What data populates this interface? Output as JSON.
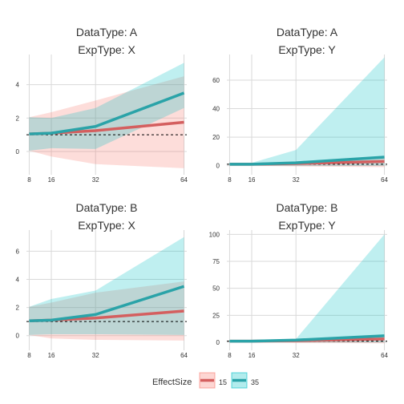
{
  "colors": {
    "series_15": "#d45f5f",
    "series_15_band": "#f8766d",
    "series_35": "#2aa3a8",
    "series_35_band": "#00bfc4",
    "grid": "#d9d9d9",
    "text": "#333333",
    "ref_line": "#000000"
  },
  "legend": {
    "title": "EffectSize",
    "items": [
      {
        "label": "15",
        "key": "series_15"
      },
      {
        "label": "35",
        "key": "series_35"
      }
    ]
  },
  "chart_data": [
    {
      "type": "line",
      "title": [
        "DataType: A",
        "ExpType: X"
      ],
      "x": [
        8,
        16,
        32,
        64
      ],
      "xticks": [
        8,
        16,
        32,
        64
      ],
      "xlim": [
        7,
        65
      ],
      "ylim": [
        -1.1,
        5.8
      ],
      "yticks": [
        0,
        2,
        4
      ],
      "ref_line_y": 1,
      "series": [
        {
          "name": "15",
          "values": [
            1.05,
            1.1,
            1.25,
            1.75
          ],
          "lower": [
            0.05,
            -0.3,
            -0.75,
            -1.0
          ],
          "upper": [
            2.05,
            2.35,
            3.05,
            4.5
          ]
        },
        {
          "name": "35",
          "values": [
            1.05,
            1.1,
            1.5,
            3.5
          ],
          "lower": [
            0.05,
            0.2,
            0.15,
            2.6
          ],
          "upper": [
            2.05,
            2.0,
            2.6,
            5.3
          ]
        }
      ]
    },
    {
      "type": "line",
      "title": [
        "DataType: A",
        "ExpType: Y"
      ],
      "x": [
        8,
        16,
        32,
        64
      ],
      "xticks": [
        8,
        16,
        32,
        64
      ],
      "xlim": [
        7,
        65
      ],
      "ylim": [
        -3,
        78
      ],
      "yticks": [
        0,
        20,
        40,
        60
      ],
      "ref_line_y": 1,
      "series": [
        {
          "name": "15",
          "values": [
            1,
            1,
            1.5,
            3
          ],
          "lower": [
            0,
            0,
            -0.5,
            -1
          ],
          "upper": [
            2,
            2,
            3,
            6
          ]
        },
        {
          "name": "35",
          "values": [
            1,
            1,
            2,
            6
          ],
          "lower": [
            0,
            0,
            0,
            0
          ],
          "upper": [
            2,
            2,
            11,
            76
          ]
        }
      ]
    },
    {
      "type": "line",
      "title": [
        "DataType: B",
        "ExpType: X"
      ],
      "x": [
        8,
        16,
        32,
        64
      ],
      "xticks": [
        8,
        16,
        32,
        64
      ],
      "xlim": [
        7,
        65
      ],
      "ylim": [
        -0.7,
        7.5
      ],
      "yticks": [
        0,
        2,
        4,
        6
      ],
      "ref_line_y": 1,
      "series": [
        {
          "name": "15",
          "values": [
            1.05,
            1.1,
            1.25,
            1.75
          ],
          "lower": [
            0.05,
            -0.2,
            -0.3,
            -0.35
          ],
          "upper": [
            2.05,
            2.35,
            3.05,
            3.85
          ]
        },
        {
          "name": "35",
          "values": [
            1.05,
            1.1,
            1.5,
            3.5
          ],
          "lower": [
            0.05,
            0.1,
            0.1,
            0.05
          ],
          "upper": [
            2.05,
            2.6,
            3.2,
            7.0
          ]
        }
      ]
    },
    {
      "type": "line",
      "title": [
        "DataType: B",
        "ExpType: Y"
      ],
      "x": [
        8,
        16,
        32,
        64
      ],
      "xticks": [
        8,
        16,
        32,
        64
      ],
      "xlim": [
        7,
        65
      ],
      "ylim": [
        -3,
        104
      ],
      "yticks": [
        0,
        25,
        50,
        75,
        100
      ],
      "ref_line_y": 1,
      "series": [
        {
          "name": "15",
          "values": [
            1,
            1,
            1.5,
            3
          ],
          "lower": [
            0,
            0,
            -0.5,
            -1
          ],
          "upper": [
            2,
            2,
            3,
            6
          ]
        },
        {
          "name": "35",
          "values": [
            1,
            1,
            2,
            6
          ],
          "lower": [
            0,
            0,
            0,
            0
          ],
          "upper": [
            2,
            2,
            3,
            100
          ]
        }
      ]
    }
  ]
}
